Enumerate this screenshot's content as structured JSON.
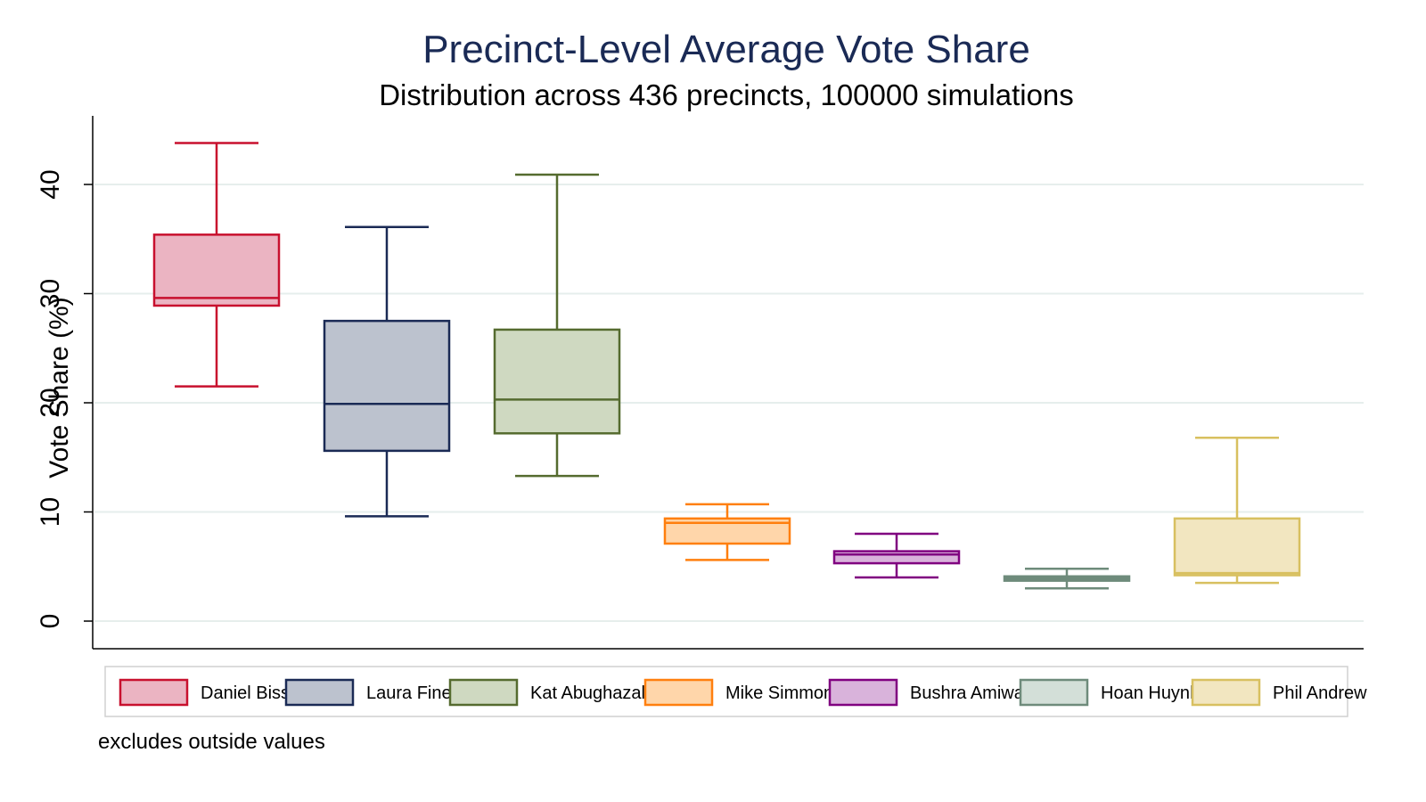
{
  "chart_data": {
    "type": "box",
    "title": "Precinct-Level Average Vote Share",
    "subtitle": "Distribution across 436 precincts, 100000 simulations",
    "ylabel": "Vote Share (%)",
    "ylim": [
      0,
      45
    ],
    "yticks": [
      0,
      10,
      20,
      30,
      40
    ],
    "yticklabels": [
      "0",
      "10",
      "20",
      "30",
      "40"
    ],
    "grid": true,
    "note": "excludes outside values",
    "series": [
      {
        "name": "Daniel Biss",
        "fill": "#ebb4c2",
        "stroke": "#c8102e",
        "whisker_low": 21.5,
        "q1": 28.9,
        "median": 29.6,
        "q3": 35.4,
        "whisker_high": 43.8
      },
      {
        "name": "Laura Fine",
        "fill": "#bcc2ce",
        "stroke": "#1a2a55",
        "whisker_low": 9.6,
        "q1": 15.6,
        "median": 19.9,
        "q3": 27.5,
        "whisker_high": 36.1
      },
      {
        "name": "Kat Abughazaleh",
        "fill": "#cfd9c1",
        "stroke": "#556b2f",
        "whisker_low": 13.3,
        "q1": 17.2,
        "median": 20.3,
        "q3": 26.7,
        "whisker_high": 40.9
      },
      {
        "name": "Mike Simmons",
        "fill": "#ffd6aa",
        "stroke": "#ff7f0e",
        "whisker_low": 5.6,
        "q1": 7.1,
        "median": 9.0,
        "q3": 9.4,
        "whisker_high": 10.7
      },
      {
        "name": "Bushra Amiwala",
        "fill": "#d9b3db",
        "stroke": "#800080",
        "whisker_low": 4.0,
        "q1": 5.3,
        "median": 6.1,
        "q3": 6.4,
        "whisker_high": 8.0
      },
      {
        "name": "Hoan Huynh",
        "fill": "#d3dfd8",
        "stroke": "#6e8b7b",
        "whisker_low": 3.0,
        "q1": 3.7,
        "median": 3.9,
        "q3": 4.1,
        "whisker_high": 4.8
      },
      {
        "name": "Phil Andrew",
        "fill": "#f2e6c0",
        "stroke": "#d8c060",
        "whisker_low": 3.5,
        "q1": 4.2,
        "median": 4.4,
        "q3": 9.4,
        "whisker_high": 16.8
      }
    ]
  }
}
